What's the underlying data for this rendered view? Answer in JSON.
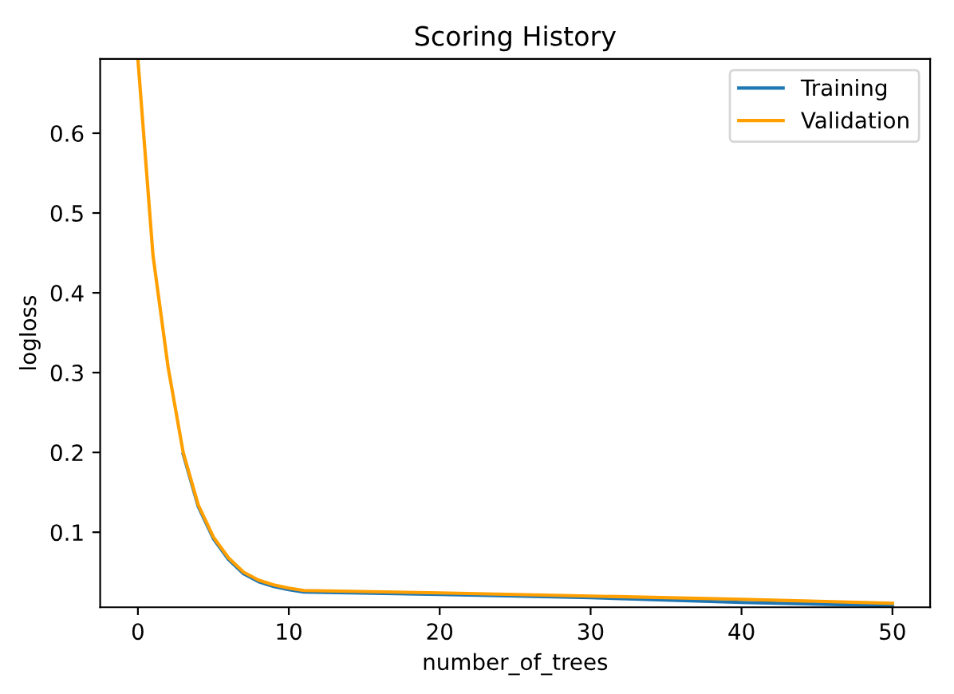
{
  "chart_data": {
    "type": "line",
    "title": "Scoring History",
    "xlabel": "number_of_trees",
    "ylabel": "logloss",
    "x": [
      0,
      1,
      2,
      3,
      4,
      5,
      6,
      7,
      8,
      9,
      10,
      11,
      20,
      30,
      40,
      50
    ],
    "series": [
      {
        "name": "Training",
        "color": "#1f77b4",
        "values": [
          null,
          null,
          null,
          0.198,
          0.132,
          0.092,
          0.066,
          0.048,
          0.038,
          0.032,
          0.028,
          0.025,
          0.022,
          0.018,
          0.012,
          0.008
        ]
      },
      {
        "name": "Validation",
        "color": "#ff9f00",
        "values": [
          0.693,
          0.447,
          0.307,
          0.2,
          0.134,
          0.094,
          0.068,
          0.05,
          0.04,
          0.034,
          0.03,
          0.027,
          0.024,
          0.02,
          0.016,
          0.011
        ]
      }
    ],
    "xlim": [
      -2.5,
      52.5
    ],
    "ylim": [
      0.006,
      0.693
    ],
    "xticks": [
      0,
      10,
      20,
      30,
      40,
      50
    ],
    "yticks": [
      0.1,
      0.2,
      0.3,
      0.4,
      0.5,
      0.6
    ],
    "grid": false,
    "legend": "top right"
  }
}
